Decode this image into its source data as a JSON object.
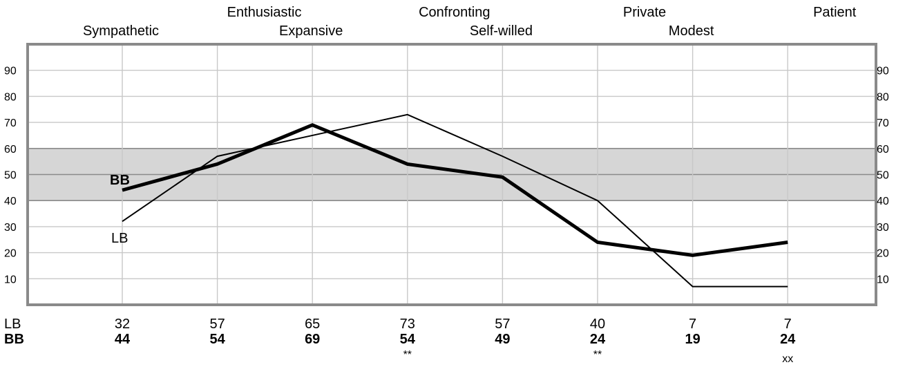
{
  "chart_data": {
    "type": "line",
    "categories": [
      "Sympathetic",
      "Enthusiastic",
      "Expansive",
      "Confronting",
      "Self-willed",
      "Private",
      "Modest",
      "Patient"
    ],
    "series": [
      {
        "name": "LB",
        "values": [
          32,
          57,
          65,
          73,
          57,
          40,
          7,
          7
        ]
      },
      {
        "name": "BB",
        "values": [
          44,
          54,
          69,
          54,
          49,
          24,
          19,
          24
        ]
      }
    ],
    "ylim": [
      0,
      100
    ],
    "yticks": [
      10,
      20,
      30,
      40,
      50,
      60,
      70,
      80,
      90
    ],
    "shaded_band": [
      40,
      60
    ],
    "grid": true,
    "row_labels": {
      "lb": "LB",
      "bb": "BB"
    },
    "markers": [
      "",
      "",
      "",
      "**",
      "",
      "**",
      "",
      "xx"
    ],
    "colors": {
      "band": "#d6d6d6",
      "frame": "#8a8a8a",
      "grid": "#c8c8c8",
      "band_grid": "#8a8a8a",
      "line": "#000000"
    }
  }
}
